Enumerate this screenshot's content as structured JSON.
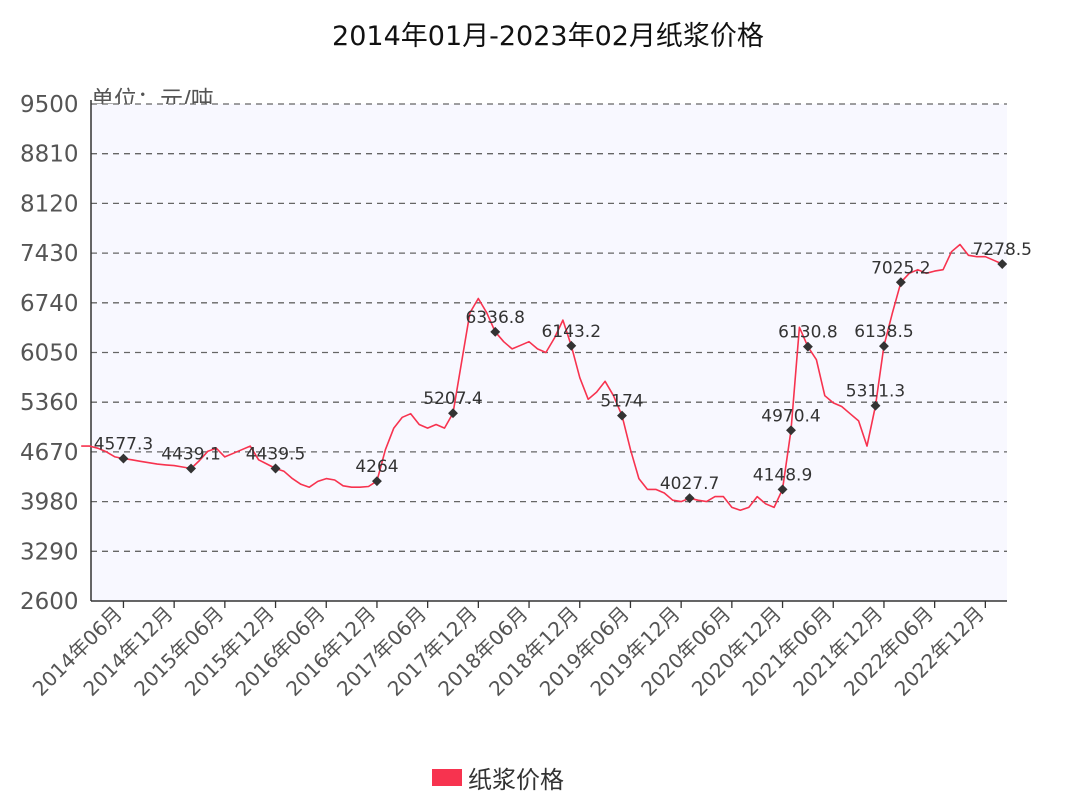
{
  "chart_data": {
    "type": "line",
    "title": "2014年01月-2023年02月纸浆价格",
    "unit_label": "单位：元/吨",
    "ylim": [
      2600,
      9500
    ],
    "yticks": [
      2600,
      3290,
      3980,
      4670,
      5360,
      6050,
      6740,
      7430,
      8120,
      8810,
      9500
    ],
    "ytick_labels": [
      "2600",
      "3290",
      "3980",
      "4670",
      "5360",
      "6050",
      "6740",
      "7430",
      "8120",
      "8810",
      "9500"
    ],
    "x_start": "2014-01",
    "x_end": "2023-02",
    "xtick_labels": [
      "2014年06月",
      "2014年12月",
      "2015年06月",
      "2015年12月",
      "2016年06月",
      "2016年12月",
      "2017年06月",
      "2017年12月",
      "2018年06月",
      "2018年12月",
      "2019年06月",
      "2019年12月",
      "2020年06月",
      "2020年12月",
      "2021年06月",
      "2021年12月",
      "2022年06月",
      "2022年12月"
    ],
    "grid": true,
    "legend_position": "bottom",
    "series": [
      {
        "name": "纸浆价格",
        "color": "#f7334f",
        "x": [
          "2014-01",
          "2014-02",
          "2014-03",
          "2014-04",
          "2014-05",
          "2014-06",
          "2014-07",
          "2014-08",
          "2014-09",
          "2014-10",
          "2014-11",
          "2014-12",
          "2015-01",
          "2015-02",
          "2015-03",
          "2015-04",
          "2015-05",
          "2015-06",
          "2015-07",
          "2015-08",
          "2015-09",
          "2015-10",
          "2015-11",
          "2015-12",
          "2016-01",
          "2016-02",
          "2016-03",
          "2016-04",
          "2016-05",
          "2016-06",
          "2016-07",
          "2016-08",
          "2016-09",
          "2016-10",
          "2016-11",
          "2016-12",
          "2017-01",
          "2017-02",
          "2017-03",
          "2017-04",
          "2017-05",
          "2017-06",
          "2017-07",
          "2017-08",
          "2017-09",
          "2017-10",
          "2017-11",
          "2017-12",
          "2018-01",
          "2018-02",
          "2018-03",
          "2018-04",
          "2018-05",
          "2018-06",
          "2018-07",
          "2018-08",
          "2018-09",
          "2018-10",
          "2018-11",
          "2018-12",
          "2019-01",
          "2019-02",
          "2019-03",
          "2019-04",
          "2019-05",
          "2019-06",
          "2019-07",
          "2019-08",
          "2019-09",
          "2019-10",
          "2019-11",
          "2019-12",
          "2020-01",
          "2020-02",
          "2020-03",
          "2020-04",
          "2020-05",
          "2020-06",
          "2020-07",
          "2020-08",
          "2020-09",
          "2020-10",
          "2020-11",
          "2020-12",
          "2021-01",
          "2021-02",
          "2021-03",
          "2021-04",
          "2021-05",
          "2021-06",
          "2021-07",
          "2021-08",
          "2021-09",
          "2021-10",
          "2021-11",
          "2021-12",
          "2022-01",
          "2022-02",
          "2022-03",
          "2022-04",
          "2022-05",
          "2022-06",
          "2022-07",
          "2022-08",
          "2022-09",
          "2022-10",
          "2022-11",
          "2022-12",
          "2023-01",
          "2023-02"
        ],
        "values": [
          4750,
          4750,
          4720,
          4670,
          4600,
          4577.3,
          4560,
          4540,
          4520,
          4500,
          4490,
          4480,
          4460,
          4439.1,
          4550,
          4680,
          4720,
          4600,
          4650,
          4700,
          4750,
          4560,
          4500,
          4439.5,
          4400,
          4300,
          4220,
          4180,
          4260,
          4300,
          4280,
          4200,
          4180,
          4180,
          4190,
          4264,
          4700,
          5000,
          5150,
          5200,
          5050,
          5000,
          5050,
          5000,
          5207.4,
          5900,
          6600,
          6800,
          6600,
          6336.8,
          6200,
          6100,
          6150,
          6200,
          6100,
          6050,
          6250,
          6500,
          6143.2,
          5700,
          5400,
          5500,
          5650,
          5450,
          5174,
          4700,
          4300,
          4150,
          4150,
          4100,
          4000,
          3980,
          4027.7,
          4000,
          3980,
          4050,
          4050,
          3900,
          3860,
          3900,
          4050,
          3950,
          3900,
          4148.9,
          4970.4,
          6400,
          6130.8,
          5950,
          5450,
          5350,
          5300,
          5200,
          5100,
          4750,
          5311.3,
          6138.5,
          6600,
          7025.2,
          7150,
          7200,
          7150,
          7180,
          7200,
          7450,
          7550,
          7400,
          7380,
          7380,
          7330,
          7278.5
        ],
        "data_labels": [
          {
            "x": "2014-06",
            "value": 4577.3,
            "text": "4577.3"
          },
          {
            "x": "2015-02",
            "value": 4439.1,
            "text": "4439.1"
          },
          {
            "x": "2015-12",
            "value": 4439.5,
            "text": "4439.5"
          },
          {
            "x": "2016-12",
            "value": 4264,
            "text": "4264"
          },
          {
            "x": "2017-09",
            "value": 5207.4,
            "text": "5207.4"
          },
          {
            "x": "2018-02",
            "value": 6336.8,
            "text": "6336.8"
          },
          {
            "x": "2018-11",
            "value": 6143.2,
            "text": "6143.2"
          },
          {
            "x": "2019-05",
            "value": 5174,
            "text": "5174"
          },
          {
            "x": "2020-01",
            "value": 4027.7,
            "text": "4027.7"
          },
          {
            "x": "2020-12",
            "value": 4148.9,
            "text": "4148.9"
          },
          {
            "x": "2021-01",
            "value": 4970.4,
            "text": "4970.4"
          },
          {
            "x": "2021-03",
            "value": 6130.8,
            "text": "6130.8"
          },
          {
            "x": "2021-11",
            "value": 5311.3,
            "text": "5311.3"
          },
          {
            "x": "2021-12",
            "value": 6138.5,
            "text": "6138.5"
          },
          {
            "x": "2022-02",
            "value": 7025.2,
            "text": "7025.2"
          },
          {
            "x": "2023-02",
            "value": 7278.5,
            "text": "7278.5"
          }
        ]
      }
    ]
  }
}
